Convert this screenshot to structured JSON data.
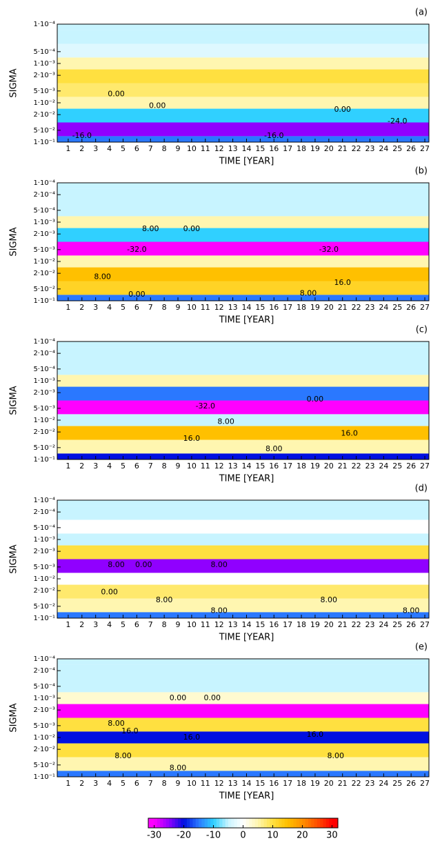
{
  "chart_data": [
    {
      "type": "heatmap",
      "title": "(a)",
      "x_label": "TIME [YEAR]",
      "y_label": "SIGMA",
      "log_y": true,
      "xlim": [
        0.2,
        27.3
      ],
      "xticks": [
        1,
        2,
        3,
        4,
        5,
        6,
        7,
        8,
        9,
        10,
        11,
        12,
        13,
        14,
        15,
        16,
        17,
        18,
        19,
        20,
        21,
        22,
        23,
        24,
        25,
        26,
        27
      ],
      "ylim": [
        0.0001,
        0.1
      ],
      "yticks": [
        {
          "value": 0.0001,
          "label": "1·10⁻⁴"
        },
        {
          "value": 0.0005,
          "label": "5·10⁻⁴"
        },
        {
          "value": 0.001,
          "label": "1·10⁻³"
        },
        {
          "value": 0.002,
          "label": "2·10⁻³"
        },
        {
          "value": 0.005,
          "label": "5·10⁻³"
        },
        {
          "value": 0.01,
          "label": "1·10⁻²"
        },
        {
          "value": 0.02,
          "label": "2·10⁻²"
        },
        {
          "value": 0.05,
          "label": "5·10⁻²"
        },
        {
          "value": 0.1,
          "label": "1·10⁻¹"
        }
      ],
      "sigma": [
        0.0001,
        0.0002,
        0.0005,
        0.001,
        0.002,
        0.005,
        0.01,
        0.02,
        0.05,
        0.1
      ],
      "z": [
        -5,
        -5,
        -3,
        5,
        10,
        8,
        5,
        -10,
        -25,
        -15
      ],
      "annotations": [
        {
          "text": "-16.0",
          "x": 2,
          "y": 0.07
        },
        {
          "text": "0.00",
          "x": 4.5,
          "y": 0.006
        },
        {
          "text": "0.00",
          "x": 7.5,
          "y": 0.012
        },
        {
          "text": "-16.0",
          "x": 16,
          "y": 0.07
        },
        {
          "text": "-24.0",
          "x": 25,
          "y": 0.03
        },
        {
          "text": "0.00",
          "x": 21,
          "y": 0.015
        }
      ]
    },
    {
      "type": "heatmap",
      "title": "(b)",
      "x_label": "TIME [YEAR]",
      "y_label": "SIGMA",
      "log_y": true,
      "xlim": [
        0.2,
        27.3
      ],
      "xticks": [
        1,
        2,
        3,
        4,
        5,
        6,
        7,
        8,
        9,
        10,
        11,
        12,
        13,
        14,
        15,
        16,
        17,
        18,
        19,
        20,
        21,
        22,
        23,
        24,
        25,
        26,
        27
      ],
      "ylim": [
        0.0001,
        0.1
      ],
      "yticks": [
        {
          "value": 0.0001,
          "label": "1·10⁻⁴"
        },
        {
          "value": 0.0002,
          "label": "2·10⁻⁴"
        },
        {
          "value": 0.0005,
          "label": "5·10⁻⁴"
        },
        {
          "value": 0.001,
          "label": "1·10⁻³"
        },
        {
          "value": 0.002,
          "label": "2·10⁻³"
        },
        {
          "value": 0.005,
          "label": "5·10⁻³"
        },
        {
          "value": 0.01,
          "label": "1·10⁻²"
        },
        {
          "value": 0.02,
          "label": "2·10⁻²"
        },
        {
          "value": 0.05,
          "label": "5·10⁻²"
        },
        {
          "value": 0.1,
          "label": "1·10⁻¹"
        }
      ],
      "sigma": [
        0.0001,
        0.0002,
        0.0005,
        0.001,
        0.002,
        0.005,
        0.01,
        0.02,
        0.05,
        0.1
      ],
      "z": [
        -5,
        -5,
        -5,
        5,
        -10,
        -30,
        5,
        15,
        12,
        -15
      ],
      "annotations": [
        {
          "text": "8.00",
          "x": 7,
          "y": 0.0015
        },
        {
          "text": "0.00",
          "x": 10,
          "y": 0.0015
        },
        {
          "text": "-32.0",
          "x": 6,
          "y": 0.005
        },
        {
          "text": "8.00",
          "x": 3.5,
          "y": 0.025
        },
        {
          "text": "0.00",
          "x": 6,
          "y": 0.07
        },
        {
          "text": "-32.0",
          "x": 20,
          "y": 0.005
        },
        {
          "text": "16.0",
          "x": 21,
          "y": 0.035
        },
        {
          "text": "8.00",
          "x": 18.5,
          "y": 0.065
        }
      ]
    },
    {
      "type": "heatmap",
      "title": "(c)",
      "x_label": "TIME [YEAR]",
      "y_label": "SIGMA",
      "log_y": true,
      "xlim": [
        0.2,
        27.3
      ],
      "xticks": [
        1,
        2,
        3,
        4,
        5,
        6,
        7,
        8,
        9,
        10,
        11,
        12,
        13,
        14,
        15,
        16,
        17,
        18,
        19,
        20,
        21,
        22,
        23,
        24,
        25,
        26,
        27
      ],
      "ylim": [
        0.0001,
        0.1
      ],
      "yticks": [
        {
          "value": 0.0001,
          "label": "1·10⁻⁴"
        },
        {
          "value": 0.0002,
          "label": "2·10⁻⁴"
        },
        {
          "value": 0.0005,
          "label": "5·10⁻⁴"
        },
        {
          "value": 0.001,
          "label": "1·10⁻³"
        },
        {
          "value": 0.002,
          "label": "2·10⁻³"
        },
        {
          "value": 0.005,
          "label": "5·10⁻³"
        },
        {
          "value": 0.01,
          "label": "1·10⁻²"
        },
        {
          "value": 0.02,
          "label": "2·10⁻²"
        },
        {
          "value": 0.05,
          "label": "5·10⁻²"
        },
        {
          "value": 0.1,
          "label": "1·10⁻¹"
        }
      ],
      "sigma": [
        0.0001,
        0.0002,
        0.0005,
        0.001,
        0.002,
        0.005,
        0.01,
        0.02,
        0.05,
        0.1
      ],
      "z": [
        -5,
        -5,
        -5,
        5,
        -15,
        -30,
        -5,
        15,
        5,
        -20
      ],
      "annotations": [
        {
          "text": "-32.0",
          "x": 11,
          "y": 0.0045
        },
        {
          "text": "8.00",
          "x": 12.5,
          "y": 0.011
        },
        {
          "text": "16.0",
          "x": 10,
          "y": 0.03
        },
        {
          "text": "0.00",
          "x": 19,
          "y": 0.003
        },
        {
          "text": "16.0",
          "x": 21.5,
          "y": 0.022
        },
        {
          "text": "8.00",
          "x": 16,
          "y": 0.055
        }
      ]
    },
    {
      "type": "heatmap",
      "title": "(d)",
      "x_label": "TIME [YEAR]",
      "y_label": "SIGMA",
      "log_y": true,
      "xlim": [
        0.2,
        27.3
      ],
      "xticks": [
        1,
        2,
        3,
        4,
        5,
        6,
        7,
        8,
        9,
        10,
        11,
        12,
        13,
        14,
        15,
        16,
        17,
        18,
        19,
        20,
        21,
        22,
        23,
        24,
        25,
        26,
        27
      ],
      "ylim": [
        0.0001,
        0.1
      ],
      "yticks": [
        {
          "value": 0.0001,
          "label": "1·10⁻⁴"
        },
        {
          "value": 0.0002,
          "label": "2·10⁻⁴"
        },
        {
          "value": 0.0005,
          "label": "5·10⁻⁴"
        },
        {
          "value": 0.001,
          "label": "1·10⁻³"
        },
        {
          "value": 0.002,
          "label": "2·10⁻³"
        },
        {
          "value": 0.005,
          "label": "5·10⁻³"
        },
        {
          "value": 0.01,
          "label": "1·10⁻²"
        },
        {
          "value": 0.02,
          "label": "2·10⁻²"
        },
        {
          "value": 0.05,
          "label": "5·10⁻²"
        },
        {
          "value": 0.1,
          "label": "1·10⁻¹"
        }
      ],
      "sigma": [
        0.0001,
        0.0002,
        0.0005,
        0.001,
        0.002,
        0.005,
        0.01,
        0.02,
        0.05,
        0.1
      ],
      "z": [
        -5,
        -5,
        0,
        -5,
        10,
        -25,
        0,
        8,
        5,
        -15
      ],
      "annotations": [
        {
          "text": "8.00",
          "x": 4.5,
          "y": 0.0045
        },
        {
          "text": "0.00",
          "x": 6.5,
          "y": 0.0045
        },
        {
          "text": "8.00",
          "x": 12,
          "y": 0.0045
        },
        {
          "text": "0.00",
          "x": 4,
          "y": 0.022
        },
        {
          "text": "8.00",
          "x": 8,
          "y": 0.035
        },
        {
          "text": "8.00",
          "x": 12,
          "y": 0.065
        },
        {
          "text": "8.00",
          "x": 20,
          "y": 0.035
        },
        {
          "text": "8.00",
          "x": 26,
          "y": 0.065
        }
      ]
    },
    {
      "type": "heatmap",
      "title": "(e)",
      "x_label": "TIME [YEAR]",
      "y_label": "SIGMA",
      "log_y": true,
      "xlim": [
        0.2,
        27.3
      ],
      "xticks": [
        1,
        2,
        3,
        4,
        5,
        6,
        7,
        8,
        9,
        10,
        11,
        12,
        13,
        14,
        15,
        16,
        17,
        18,
        19,
        20,
        21,
        22,
        23,
        24,
        25,
        26,
        27
      ],
      "ylim": [
        0.0001,
        0.1
      ],
      "yticks": [
        {
          "value": 0.0001,
          "label": "1·10⁻⁴"
        },
        {
          "value": 0.0002,
          "label": "2·10⁻⁴"
        },
        {
          "value": 0.0005,
          "label": "5·10⁻⁴"
        },
        {
          "value": 0.001,
          "label": "1·10⁻³"
        },
        {
          "value": 0.002,
          "label": "2·10⁻³"
        },
        {
          "value": 0.005,
          "label": "5·10⁻³"
        },
        {
          "value": 0.01,
          "label": "1·10⁻²"
        },
        {
          "value": 0.02,
          "label": "2·10⁻²"
        },
        {
          "value": 0.05,
          "label": "5·10⁻²"
        },
        {
          "value": 0.1,
          "label": "1·10⁻¹"
        }
      ],
      "sigma": [
        0.0001,
        0.0002,
        0.0005,
        0.001,
        0.002,
        0.005,
        0.01,
        0.02,
        0.05,
        0.1
      ],
      "z": [
        -5,
        -5,
        -5,
        3,
        -30,
        10,
        -20,
        10,
        5,
        -15
      ],
      "annotations": [
        {
          "text": "0.00",
          "x": 9,
          "y": 0.001
        },
        {
          "text": "0.00",
          "x": 11.5,
          "y": 0.001
        },
        {
          "text": "8.00",
          "x": 4.5,
          "y": 0.0045
        },
        {
          "text": "16.0",
          "x": 5.5,
          "y": 0.007
        },
        {
          "text": "16.0",
          "x": 10,
          "y": 0.01
        },
        {
          "text": "8.00",
          "x": 5,
          "y": 0.03
        },
        {
          "text": "8.00",
          "x": 9,
          "y": 0.06
        },
        {
          "text": "16.0",
          "x": 19,
          "y": 0.0085
        },
        {
          "text": "8.00",
          "x": 20.5,
          "y": 0.03
        }
      ]
    }
  ],
  "colorbar": {
    "ticks": [
      -30,
      -20,
      -10,
      0,
      10,
      20,
      30
    ],
    "lim": [
      -32,
      32
    ],
    "colormap": {
      "values": [
        -30,
        -25,
        -20,
        -15,
        -10,
        -5,
        0,
        5,
        10,
        15,
        20,
        25,
        30
      ],
      "colors": [
        "#ff00ff",
        "#9000ff",
        "#0010e0",
        "#2a78ff",
        "#30d0ff",
        "#c8f4ff",
        "#ffffff",
        "#fff6b0",
        "#ffe040",
        "#ffc000",
        "#ff9000",
        "#ff5000",
        "#ff0000"
      ]
    }
  }
}
